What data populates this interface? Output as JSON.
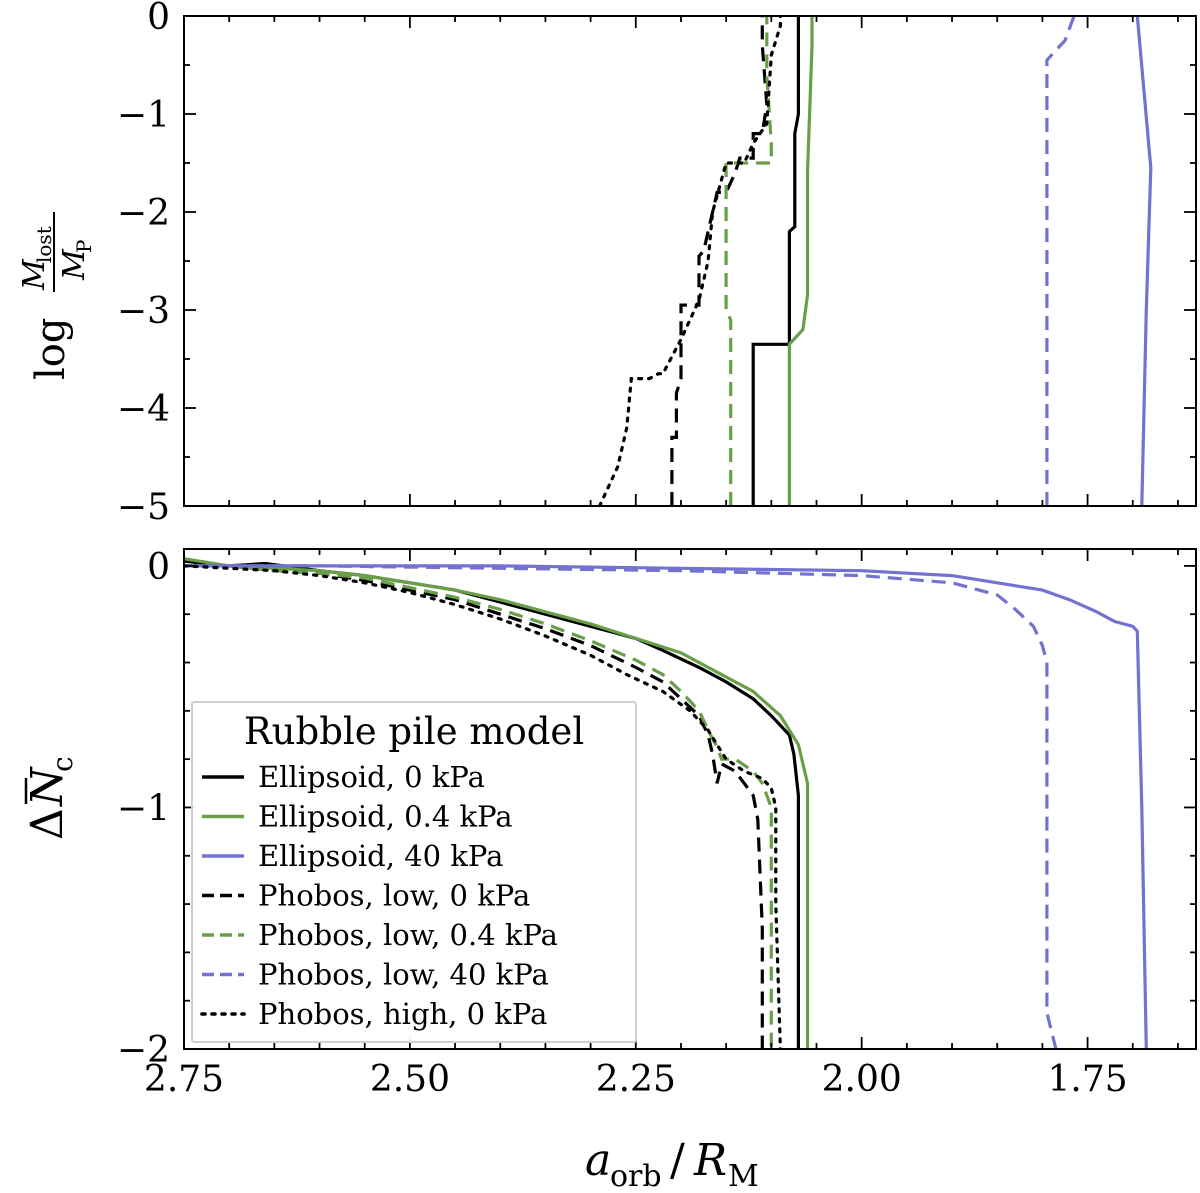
{
  "chart_data": [
    {
      "panel": "top",
      "type": "line",
      "ylabel": {
        "prefix": "log",
        "numerator": "M",
        "numerator_sub": "lost",
        "denominator": "M",
        "denominator_sub": "P"
      },
      "xlim": [
        2.75,
        1.63
      ],
      "ylim": [
        -5,
        0
      ],
      "yticks": [
        0,
        -1,
        -2,
        -3,
        -4,
        -5
      ],
      "ytick_labels": [
        "0",
        "−1",
        "−2",
        "−3",
        "−4",
        "−5"
      ],
      "series": [
        {
          "name": "Ellipsoid, 0 kPa",
          "color": "#000000",
          "dash": "solid",
          "points": [
            [
              2.12,
              -5
            ],
            [
              2.12,
              -3.35
            ],
            [
              2.08,
              -3.35
            ],
            [
              2.08,
              -2.2
            ],
            [
              2.074,
              -2.15
            ],
            [
              2.074,
              -1.2
            ],
            [
              2.07,
              -1.0
            ],
            [
              2.07,
              0
            ]
          ]
        },
        {
          "name": "Ellipsoid, 0.4 kPa",
          "color": "#6a9f4a",
          "dash": "solid",
          "points": [
            [
              2.08,
              -5
            ],
            [
              2.08,
              -3.35
            ],
            [
              2.065,
              -3.2
            ],
            [
              2.06,
              -2.85
            ],
            [
              2.06,
              -1.6
            ],
            [
              2.055,
              -0.3
            ],
            [
              2.055,
              0
            ]
          ]
        },
        {
          "name": "Ellipsoid, 40 kPa",
          "color": "#7272d0",
          "dash": "solid",
          "points": [
            [
              1.69,
              -5
            ],
            [
              1.685,
              -3.0
            ],
            [
              1.68,
              -1.55
            ],
            [
              1.695,
              0
            ]
          ]
        },
        {
          "name": "Phobos, low, 0 kPa",
          "color": "#000000",
          "dash": "dashed",
          "points": [
            [
              2.21,
              -5
            ],
            [
              2.21,
              -4.3
            ],
            [
              2.205,
              -4.3
            ],
            [
              2.205,
              -3.85
            ],
            [
              2.2,
              -3.7
            ],
            [
              2.2,
              -2.95
            ],
            [
              2.18,
              -2.95
            ],
            [
              2.18,
              -2.45
            ],
            [
              2.175,
              -2.4
            ],
            [
              2.16,
              -1.8
            ],
            [
              2.15,
              -1.8
            ],
            [
              2.15,
              -1.8
            ],
            [
              2.14,
              -1.6
            ],
            [
              2.135,
              -1.45
            ],
            [
              2.12,
              -1.45
            ],
            [
              2.12,
              -1.2
            ],
            [
              2.11,
              -1.2
            ],
            [
              2.105,
              -0.9
            ],
            [
              2.11,
              -0.3
            ],
            [
              2.11,
              0
            ]
          ]
        },
        {
          "name": "Phobos, low, 0.4 kPa",
          "color": "#6a9f4a",
          "dash": "dashed",
          "points": [
            [
              2.145,
              -5
            ],
            [
              2.145,
              -3.1
            ],
            [
              2.15,
              -3.0
            ],
            [
              2.15,
              -1.5
            ],
            [
              2.1,
              -1.5
            ],
            [
              2.1,
              -1.3
            ],
            [
              2.105,
              -0.6
            ],
            [
              2.105,
              -0.1
            ],
            [
              2.105,
              0
            ]
          ]
        },
        {
          "name": "Phobos, low, 40 kPa",
          "color": "#7272d0",
          "dash": "dashed",
          "points": [
            [
              1.795,
              -5
            ],
            [
              1.795,
              -0.45
            ],
            [
              1.775,
              -0.25
            ],
            [
              1.765,
              0
            ]
          ]
        },
        {
          "name": "Phobos, high, 0 kPa",
          "color": "#000000",
          "dash": "dotted",
          "points": [
            [
              2.29,
              -5
            ],
            [
              2.27,
              -4.6
            ],
            [
              2.26,
              -4.2
            ],
            [
              2.255,
              -3.7
            ],
            [
              2.235,
              -3.7
            ],
            [
              2.225,
              -3.65
            ],
            [
              2.22,
              -3.65
            ],
            [
              2.2,
              -3.3
            ],
            [
              2.18,
              -2.9
            ],
            [
              2.17,
              -2.5
            ],
            [
              2.165,
              -2.0
            ],
            [
              2.15,
              -1.5
            ],
            [
              2.13,
              -1.5
            ],
            [
              2.12,
              -1.3
            ],
            [
              2.105,
              -1.1
            ],
            [
              2.1,
              -0.4
            ],
            [
              2.09,
              -0.1
            ],
            [
              2.09,
              0
            ]
          ]
        }
      ]
    },
    {
      "panel": "bottom",
      "type": "line",
      "xlabel": {
        "main": "a",
        "main_sub": "orb",
        "divider": "/",
        "second": "R",
        "second_sub": "M"
      },
      "ylabel": {
        "prefix": "Δ",
        "symbol": "N",
        "sub": "c"
      },
      "xlim": [
        2.75,
        1.63
      ],
      "ylim": [
        -2,
        0.07
      ],
      "xticks": [
        2.75,
        2.5,
        2.25,
        2.0,
        1.75
      ],
      "xtick_labels": [
        "2.75",
        "2.50",
        "2.25",
        "2.00",
        "1.75"
      ],
      "yticks": [
        0,
        -1,
        -2
      ],
      "ytick_labels": [
        "0",
        "−1",
        "−2"
      ],
      "series": [
        {
          "name": "Ellipsoid, 0 kPa",
          "color": "#000000",
          "dash": "solid",
          "points": [
            [
              2.75,
              0.02
            ],
            [
              2.7,
              0.0
            ],
            [
              2.66,
              0.01
            ],
            [
              2.6,
              -0.02
            ],
            [
              2.55,
              -0.04
            ],
            [
              2.5,
              -0.07
            ],
            [
              2.45,
              -0.1
            ],
            [
              2.4,
              -0.15
            ],
            [
              2.35,
              -0.2
            ],
            [
              2.3,
              -0.25
            ],
            [
              2.25,
              -0.3
            ],
            [
              2.22,
              -0.35
            ],
            [
              2.18,
              -0.42
            ],
            [
              2.15,
              -0.48
            ],
            [
              2.12,
              -0.55
            ],
            [
              2.1,
              -0.62
            ],
            [
              2.08,
              -0.7
            ],
            [
              2.075,
              -0.78
            ],
            [
              2.07,
              -0.95
            ],
            [
              2.07,
              -1.2
            ],
            [
              2.07,
              -2
            ]
          ]
        },
        {
          "name": "Ellipsoid, 0.4 kPa",
          "color": "#6a9f4a",
          "dash": "solid",
          "points": [
            [
              2.75,
              0.03
            ],
            [
              2.7,
              0.0
            ],
            [
              2.65,
              -0.01
            ],
            [
              2.6,
              -0.02
            ],
            [
              2.55,
              -0.04
            ],
            [
              2.5,
              -0.07
            ],
            [
              2.45,
              -0.1
            ],
            [
              2.4,
              -0.14
            ],
            [
              2.35,
              -0.19
            ],
            [
              2.3,
              -0.24
            ],
            [
              2.25,
              -0.3
            ],
            [
              2.2,
              -0.36
            ],
            [
              2.16,
              -0.44
            ],
            [
              2.12,
              -0.52
            ],
            [
              2.09,
              -0.62
            ],
            [
              2.07,
              -0.74
            ],
            [
              2.06,
              -0.9
            ],
            [
              2.06,
              -1.0
            ],
            [
              2.06,
              -2
            ]
          ]
        },
        {
          "name": "Ellipsoid, 40 kPa",
          "color": "#7272d0",
          "dash": "solid",
          "points": [
            [
              2.75,
              0.0
            ],
            [
              2.6,
              0.0
            ],
            [
              2.4,
              0.0
            ],
            [
              2.2,
              -0.01
            ],
            [
              2.0,
              -0.02
            ],
            [
              1.9,
              -0.04
            ],
            [
              1.85,
              -0.07
            ],
            [
              1.8,
              -0.1
            ],
            [
              1.77,
              -0.14
            ],
            [
              1.74,
              -0.19
            ],
            [
              1.72,
              -0.23
            ],
            [
              1.7,
              -0.25
            ],
            [
              1.695,
              -0.27
            ],
            [
              1.69,
              -1.0
            ],
            [
              1.685,
              -2
            ]
          ]
        },
        {
          "name": "Phobos, low, 0 kPa",
          "color": "#000000",
          "dash": "dashed",
          "points": [
            [
              2.75,
              0.0
            ],
            [
              2.7,
              0.0
            ],
            [
              2.65,
              -0.02
            ],
            [
              2.6,
              -0.03
            ],
            [
              2.55,
              -0.06
            ],
            [
              2.5,
              -0.1
            ],
            [
              2.45,
              -0.14
            ],
            [
              2.4,
              -0.2
            ],
            [
              2.35,
              -0.26
            ],
            [
              2.3,
              -0.33
            ],
            [
              2.25,
              -0.42
            ],
            [
              2.22,
              -0.48
            ],
            [
              2.2,
              -0.55
            ],
            [
              2.18,
              -0.62
            ],
            [
              2.17,
              -0.7
            ],
            [
              2.165,
              -0.78
            ],
            [
              2.16,
              -0.9
            ],
            [
              2.155,
              -0.82
            ],
            [
              2.14,
              -0.85
            ],
            [
              2.13,
              -0.9
            ],
            [
              2.12,
              -0.95
            ],
            [
              2.115,
              -1.05
            ],
            [
              2.11,
              -1.5
            ],
            [
              2.11,
              -2
            ]
          ]
        },
        {
          "name": "Phobos, low, 0.4 kPa",
          "color": "#6a9f4a",
          "dash": "dashed",
          "points": [
            [
              2.75,
              0.0
            ],
            [
              2.7,
              0.0
            ],
            [
              2.65,
              -0.02
            ],
            [
              2.6,
              -0.03
            ],
            [
              2.55,
              -0.05
            ],
            [
              2.5,
              -0.09
            ],
            [
              2.45,
              -0.13
            ],
            [
              2.4,
              -0.18
            ],
            [
              2.35,
              -0.24
            ],
            [
              2.3,
              -0.31
            ],
            [
              2.25,
              -0.39
            ],
            [
              2.22,
              -0.45
            ],
            [
              2.2,
              -0.52
            ],
            [
              2.18,
              -0.6
            ],
            [
              2.17,
              -0.68
            ],
            [
              2.16,
              -0.75
            ],
            [
              2.155,
              -0.8
            ],
            [
              2.14,
              -0.8
            ],
            [
              2.12,
              -0.85
            ],
            [
              2.11,
              -0.9
            ],
            [
              2.1,
              -1.0
            ],
            [
              2.1,
              -1.4
            ],
            [
              2.1,
              -2
            ]
          ]
        },
        {
          "name": "Phobos, low, 40 kPa",
          "color": "#7272d0",
          "dash": "dashed",
          "points": [
            [
              2.75,
              0.0
            ],
            [
              2.6,
              0.0
            ],
            [
              2.4,
              -0.01
            ],
            [
              2.2,
              -0.02
            ],
            [
              2.0,
              -0.04
            ],
            [
              1.9,
              -0.07
            ],
            [
              1.85,
              -0.12
            ],
            [
              1.83,
              -0.18
            ],
            [
              1.81,
              -0.25
            ],
            [
              1.8,
              -0.33
            ],
            [
              1.795,
              -0.4
            ],
            [
              1.795,
              -1.2
            ],
            [
              1.795,
              -1.85
            ],
            [
              1.785,
              -2
            ]
          ]
        },
        {
          "name": "Phobos, high, 0 kPa",
          "color": "#000000",
          "dash": "dotted",
          "points": [
            [
              2.75,
              0.0
            ],
            [
              2.7,
              -0.01
            ],
            [
              2.65,
              -0.02
            ],
            [
              2.6,
              -0.04
            ],
            [
              2.55,
              -0.07
            ],
            [
              2.5,
              -0.11
            ],
            [
              2.45,
              -0.16
            ],
            [
              2.4,
              -0.22
            ],
            [
              2.35,
              -0.29
            ],
            [
              2.3,
              -0.37
            ],
            [
              2.26,
              -0.45
            ],
            [
              2.22,
              -0.52
            ],
            [
              2.19,
              -0.6
            ],
            [
              2.17,
              -0.68
            ],
            [
              2.16,
              -0.74
            ],
            [
              2.15,
              -0.8
            ],
            [
              2.13,
              -0.85
            ],
            [
              2.11,
              -0.88
            ],
            [
              2.1,
              -0.92
            ],
            [
              2.095,
              -1.0
            ],
            [
              2.095,
              -1.4
            ],
            [
              2.09,
              -2
            ]
          ]
        }
      ]
    }
  ],
  "legend": {
    "title": "Rubble pile model",
    "entries": [
      {
        "label": "Ellipsoid, 0 kPa",
        "color": "#000000",
        "dash": "solid"
      },
      {
        "label": "Ellipsoid, 0.4 kPa",
        "color": "#6a9f4a",
        "dash": "solid"
      },
      {
        "label": "Ellipsoid, 40 kPa",
        "color": "#7272d0",
        "dash": "solid"
      },
      {
        "label": "Phobos, low, 0 kPa",
        "color": "#000000",
        "dash": "dashed"
      },
      {
        "label": "Phobos, low, 0.4 kPa",
        "color": "#6a9f4a",
        "dash": "dashed"
      },
      {
        "label": "Phobos, low, 40 kPa",
        "color": "#7272d0",
        "dash": "dashed"
      },
      {
        "label": "Phobos, high, 0 kPa",
        "color": "#000000",
        "dash": "dotted"
      }
    ]
  }
}
